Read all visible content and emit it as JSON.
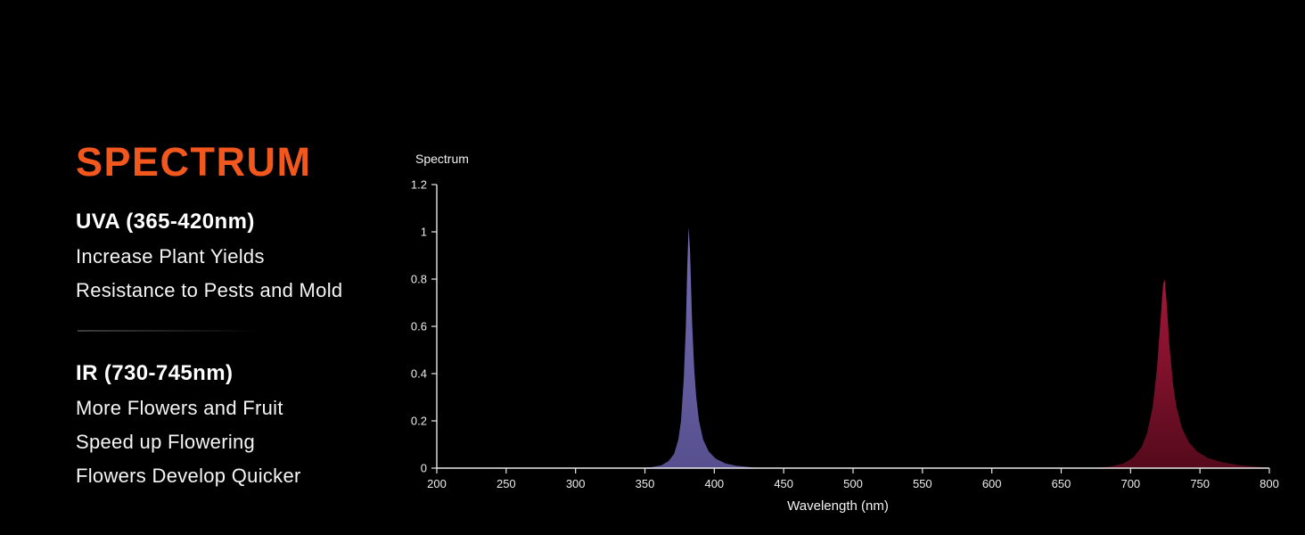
{
  "left_panel": {
    "title": "SPECTRUM",
    "title_color": "#f2571d",
    "sections": [
      {
        "heading": "UVA (365-420nm)",
        "lines": [
          "Increase Plant Yields",
          "Resistance to Pests and Mold"
        ]
      },
      {
        "heading": "IR (730-745nm)",
        "lines": [
          "More Flowers and Fruit",
          "Speed up Flowering",
          "Flowers Develop Quicker"
        ]
      }
    ]
  },
  "chart_data": {
    "type": "area",
    "title": "Spectrum",
    "xlabel": "Wavelength (nm)",
    "ylabel": "",
    "xlim": [
      200,
      800
    ],
    "ylim": [
      0,
      1.2
    ],
    "x_ticks": [
      200,
      250,
      300,
      350,
      400,
      450,
      500,
      550,
      600,
      650,
      700,
      750,
      800
    ],
    "y_ticks": [
      0,
      0.2,
      0.4,
      0.6,
      0.8,
      1,
      1.2
    ],
    "axis_color": "#e8e8e8",
    "grid": false,
    "legend": false,
    "series": [
      {
        "name": "UVA peak (365-420nm)",
        "color": "#746cb4",
        "color2": "#57508f",
        "peak_wavelength": 381,
        "peak_value": 1.02,
        "points": [
          [
            345,
            0
          ],
          [
            355,
            0.004
          ],
          [
            362,
            0.012
          ],
          [
            367,
            0.03
          ],
          [
            371,
            0.06
          ],
          [
            374,
            0.12
          ],
          [
            376,
            0.2
          ],
          [
            378,
            0.38
          ],
          [
            379.5,
            0.6
          ],
          [
            380.5,
            0.85
          ],
          [
            381.5,
            1.02
          ],
          [
            382.5,
            0.92
          ],
          [
            384,
            0.62
          ],
          [
            385.5,
            0.42
          ],
          [
            387,
            0.3
          ],
          [
            389,
            0.2
          ],
          [
            392,
            0.12
          ],
          [
            396,
            0.07
          ],
          [
            401,
            0.04
          ],
          [
            408,
            0.02
          ],
          [
            416,
            0.01
          ],
          [
            428,
            0.003
          ],
          [
            440,
            0
          ]
        ]
      },
      {
        "name": "IR peak (730-745nm)",
        "color": "#a5173a",
        "color2": "#550a1c",
        "peak_wavelength": 724,
        "peak_value": 0.8,
        "points": [
          [
            672,
            0
          ],
          [
            685,
            0.006
          ],
          [
            695,
            0.02
          ],
          [
            702,
            0.045
          ],
          [
            708,
            0.09
          ],
          [
            712,
            0.15
          ],
          [
            716,
            0.26
          ],
          [
            719,
            0.42
          ],
          [
            721.5,
            0.62
          ],
          [
            723.5,
            0.78
          ],
          [
            724.5,
            0.8
          ],
          [
            726,
            0.7
          ],
          [
            728,
            0.52
          ],
          [
            730.5,
            0.36
          ],
          [
            733,
            0.26
          ],
          [
            737,
            0.17
          ],
          [
            742,
            0.11
          ],
          [
            748,
            0.07
          ],
          [
            756,
            0.042
          ],
          [
            766,
            0.025
          ],
          [
            778,
            0.013
          ],
          [
            790,
            0.006
          ],
          [
            800,
            0.002
          ]
        ]
      }
    ]
  }
}
